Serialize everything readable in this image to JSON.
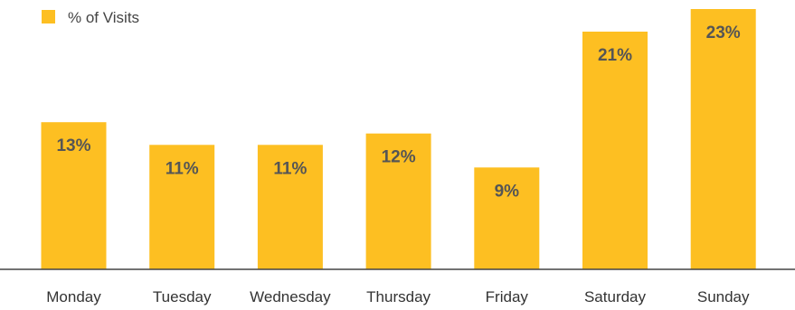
{
  "chart_data": {
    "type": "bar",
    "categories": [
      "Monday",
      "Tuesday",
      "Wednesday",
      "Thursday",
      "Friday",
      "Saturday",
      "Sunday"
    ],
    "series": [
      {
        "name": "% of Visits",
        "values": [
          13,
          11,
          11,
          12,
          9,
          21,
          23
        ],
        "labels": [
          "13%",
          "11%",
          "11%",
          "12%",
          "9%",
          "21%",
          "23%"
        ]
      }
    ],
    "ylim": [
      0,
      23
    ],
    "grid": false,
    "legend": "top-left",
    "colors": {
      "bar": "#FDBF22",
      "baseline": "#444444"
    }
  }
}
